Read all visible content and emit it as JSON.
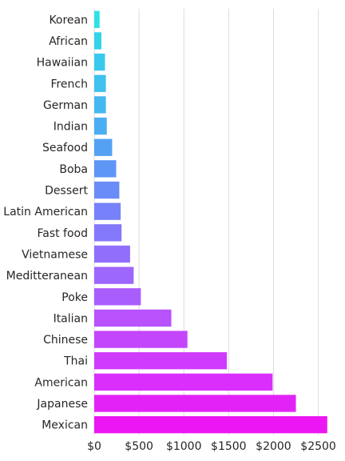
{
  "chart_data": {
    "type": "bar",
    "orientation": "horizontal",
    "grid": true,
    "xlim": [
      0,
      2700
    ],
    "x_ticks": [
      0,
      500,
      1000,
      1500,
      2000,
      2500
    ],
    "x_tick_labels": [
      "$0",
      "$500",
      "$1000",
      "$1500",
      "$2000",
      "$2500"
    ],
    "categories": [
      "Korean",
      "African",
      "Hawaiian",
      "French",
      "German",
      "Indian",
      "Seafood",
      "Boba",
      "Dessert",
      "Latin American",
      "Fast food",
      "Vietnamese",
      "Meditteranean",
      "Poke",
      "Italian",
      "Chinese",
      "Thai",
      "American",
      "Japanese",
      "Mexican"
    ],
    "values": [
      60,
      80,
      120,
      130,
      130,
      140,
      200,
      245,
      280,
      295,
      305,
      400,
      440,
      520,
      860,
      1040,
      1480,
      1990,
      2250,
      2600
    ],
    "colors": [
      "#2de2e6",
      "#33d3ea",
      "#38c9ec",
      "#3ec1ee",
      "#44b8f0",
      "#4aaef2",
      "#54a1f4",
      "#5e96f6",
      "#6a8cf8",
      "#7782fa",
      "#8478fb",
      "#916ffc",
      "#9d66fd",
      "#aa5dfd",
      "#b752fd",
      "#c346fd",
      "#cf3bfd",
      "#da2ffc",
      "#e322f8",
      "#ec16f4"
    ]
  }
}
